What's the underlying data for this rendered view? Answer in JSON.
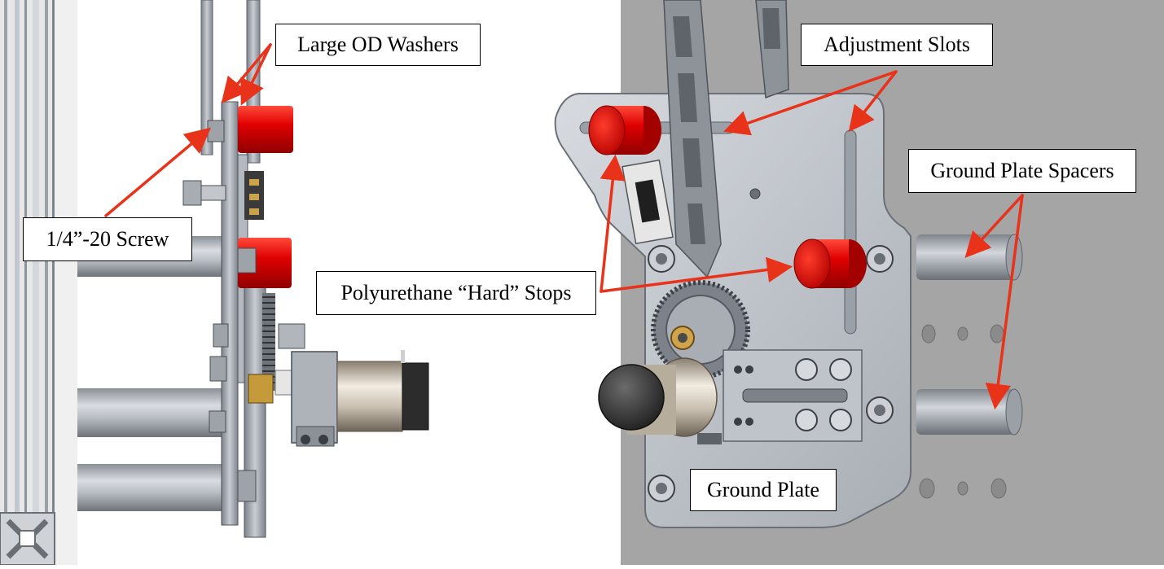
{
  "figure": {
    "left_panel": {
      "callouts": {
        "washers": "Large OD Washers",
        "screw": "1/4”-20 Screw",
        "stops": "Polyurethane “Hard” Stops"
      }
    },
    "right_panel": {
      "callouts": {
        "slots": "Adjustment Slots",
        "spacers": "Ground Plate Spacers",
        "ground_plate": "Ground Plate"
      }
    }
  },
  "colors": {
    "arrow": "#e8321a",
    "stop_red": "#d40000",
    "right_background": "#a5a5a5",
    "plate_metal": "#c8ccd2"
  }
}
